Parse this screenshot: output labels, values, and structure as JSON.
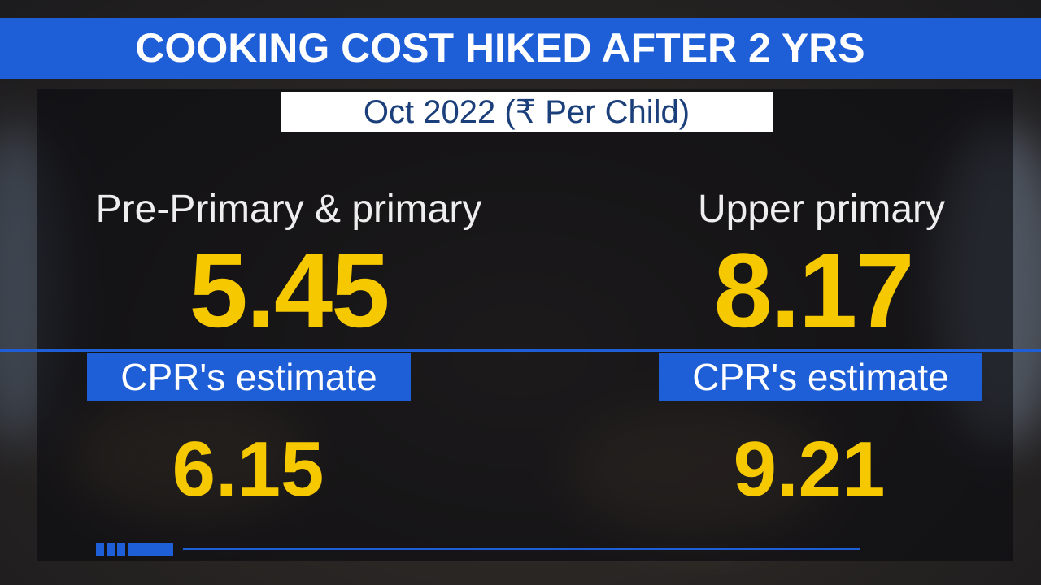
{
  "title": "COOKING COST HIKED AFTER 2 YRS",
  "subtitle": "Oct 2022 (₹ Per Child)",
  "panels": [
    {
      "label": "Pre-Primary & primary",
      "value": 5.45,
      "estimate_label": "CPR's estimate",
      "estimate": 6.15
    },
    {
      "label": "Upper primary",
      "value": 8.17,
      "estimate_label": "CPR's estimate",
      "estimate": 9.21
    }
  ]
}
